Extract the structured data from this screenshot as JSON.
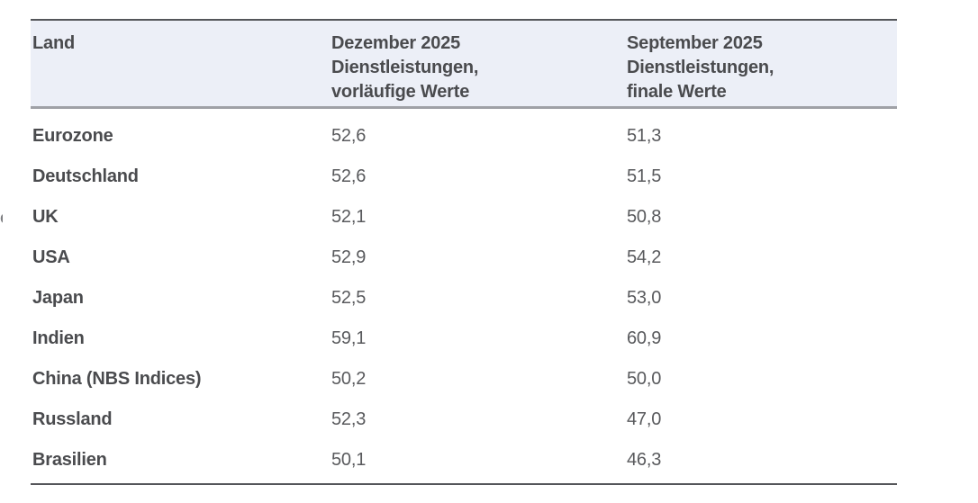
{
  "table": {
    "header": {
      "col1": "Land",
      "col2_lines": [
        "Dezember 2025",
        "Dienstleistungen,",
        "vorläufige Werte"
      ],
      "col3_lines": [
        "September 2025",
        "Dienstleistungen,",
        "finale Werte"
      ]
    },
    "rows": [
      {
        "land": "Eurozone",
        "dez2025": "52,6",
        "sep2025": "51,3"
      },
      {
        "land": "Deutschland",
        "dez2025": "52,6",
        "sep2025": "51,5"
      },
      {
        "land": "UK",
        "dez2025": "52,1",
        "sep2025": "50,8"
      },
      {
        "land": "USA",
        "dez2025": "52,9",
        "sep2025": "54,2"
      },
      {
        "land": "Japan",
        "dez2025": "52,5",
        "sep2025": "53,0"
      },
      {
        "land": "Indien",
        "dez2025": "59,1",
        "sep2025": "60,9"
      },
      {
        "land": "China (NBS Indices)",
        "dez2025": "50,2",
        "sep2025": "50,0"
      },
      {
        "land": "Russland",
        "dez2025": "52,3",
        "sep2025": "47,0"
      },
      {
        "land": "Brasilien",
        "dez2025": "50,1",
        "sep2025": "46,3"
      }
    ]
  },
  "colors": {
    "header_bg": "#ECEFF7",
    "top_rule": "#54565A",
    "header_rule": "#9FA1A6",
    "bottom_rule": "#55565A",
    "heading_text": "#4A4B4E",
    "value_text": "#595A5D"
  },
  "chart_data": {
    "type": "table",
    "columns": [
      "Land",
      "Dezember 2025 Dienstleistungen, vorläufige Werte",
      "September 2025 Dienstleistungen, finale Werte"
    ],
    "rows": [
      [
        "Eurozone",
        52.6,
        51.3
      ],
      [
        "Deutschland",
        52.6,
        51.5
      ],
      [
        "UK",
        52.1,
        50.8
      ],
      [
        "USA",
        52.9,
        54.2
      ],
      [
        "Japan",
        52.5,
        53.0
      ],
      [
        "Indien",
        59.1,
        60.9
      ],
      [
        "China (NBS Indices)",
        50.2,
        50.0
      ],
      [
        "Russland",
        52.3,
        47.0
      ],
      [
        "Brasilien",
        50.1,
        46.3
      ]
    ]
  }
}
